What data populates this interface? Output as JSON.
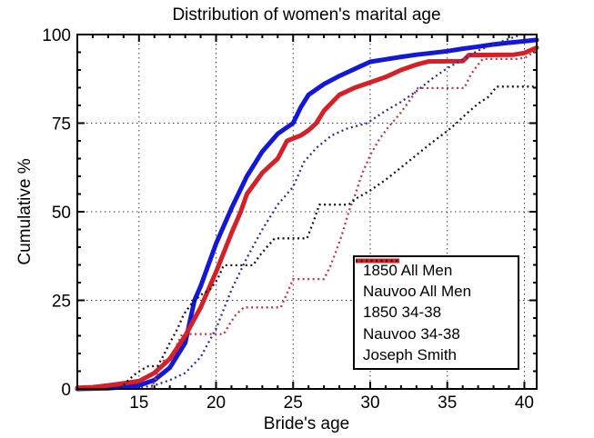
{
  "figure": {
    "background": "#ffffff"
  },
  "chart_data": {
    "type": "line",
    "title": "Distribution of women's marital age",
    "xlabel": "Bride's age",
    "ylabel": "Cumulative %",
    "xlim": [
      11,
      40.8
    ],
    "ylim": [
      0,
      100
    ],
    "x_ticks": [
      15,
      20,
      25,
      30,
      35,
      40
    ],
    "y_ticks": [
      0,
      25,
      50,
      75,
      100
    ],
    "x_minor_step": 1,
    "y_minor_step": 5,
    "grid": true,
    "grid_style": "dotted",
    "grid_color": "#3a3a3a",
    "axis_color": "#000000",
    "legend_position": "lower-right-inside",
    "series": [
      {
        "name": "1850 All Men",
        "color": "#1318d8",
        "line_style": "solid",
        "line_width": 5,
        "points": [
          [
            11,
            0
          ],
          [
            13,
            0.2
          ],
          [
            14,
            0.5
          ],
          [
            15,
            1
          ],
          [
            16,
            2.5
          ],
          [
            17,
            6
          ],
          [
            18,
            13
          ],
          [
            18.6,
            25
          ],
          [
            19,
            29
          ],
          [
            20,
            41
          ],
          [
            21,
            51
          ],
          [
            22,
            60
          ],
          [
            23,
            67
          ],
          [
            24,
            72
          ],
          [
            25,
            75
          ],
          [
            25.5,
            79.5
          ],
          [
            26,
            83
          ],
          [
            27,
            86
          ],
          [
            28,
            88.3
          ],
          [
            29,
            90.3
          ],
          [
            30,
            92.3
          ],
          [
            31,
            93
          ],
          [
            32,
            93.7
          ],
          [
            33,
            94.3
          ],
          [
            34,
            94.8
          ],
          [
            35,
            95.3
          ],
          [
            36,
            96
          ],
          [
            37,
            96.6
          ],
          [
            38,
            97.2
          ],
          [
            39,
            97.7
          ],
          [
            40,
            98.1
          ],
          [
            40.8,
            98.5
          ]
        ]
      },
      {
        "name": "Nauvoo All Men",
        "color": "#d42026",
        "line_style": "solid",
        "line_width": 5,
        "points": [
          [
            11,
            0.3
          ],
          [
            12,
            0.5
          ],
          [
            13,
            1
          ],
          [
            14,
            1.6
          ],
          [
            15,
            2.2
          ],
          [
            16,
            4.5
          ],
          [
            17,
            8.5
          ],
          [
            18,
            15
          ],
          [
            19,
            23
          ],
          [
            20,
            33
          ],
          [
            21,
            44
          ],
          [
            21.6,
            50
          ],
          [
            22,
            55
          ],
          [
            23,
            61
          ],
          [
            24,
            65
          ],
          [
            24.6,
            70
          ],
          [
            25.5,
            71.5
          ],
          [
            26,
            73
          ],
          [
            26.5,
            75
          ],
          [
            27,
            78.5
          ],
          [
            28,
            83
          ],
          [
            29,
            85
          ],
          [
            30,
            86.5
          ],
          [
            31,
            88
          ],
          [
            32,
            90
          ],
          [
            33,
            91.5
          ],
          [
            33.8,
            92.4
          ],
          [
            36,
            92.5
          ],
          [
            36.4,
            94.2
          ],
          [
            39.3,
            94.3
          ],
          [
            40,
            94.8
          ],
          [
            40.8,
            96.3
          ]
        ]
      },
      {
        "name": "1850 34-38",
        "color": "#2c2f9e",
        "line_style": "dotted",
        "line_width": 2.3,
        "points": [
          [
            14.5,
            0
          ],
          [
            15,
            0.3
          ],
          [
            16,
            1
          ],
          [
            17,
            2.5
          ],
          [
            18,
            4.5
          ],
          [
            19,
            9
          ],
          [
            20,
            17
          ],
          [
            21,
            28
          ],
          [
            22,
            37
          ],
          [
            23,
            45
          ],
          [
            24,
            52
          ],
          [
            25,
            57
          ],
          [
            25.7,
            64
          ],
          [
            26.5,
            68
          ],
          [
            27.5,
            71.5
          ],
          [
            28.5,
            73.5
          ],
          [
            29.8,
            75
          ],
          [
            31,
            78.5
          ],
          [
            32,
            81
          ],
          [
            33,
            84
          ],
          [
            34,
            87.5
          ],
          [
            35,
            90.5
          ],
          [
            36,
            93
          ],
          [
            37,
            95.5
          ],
          [
            38,
            97.2
          ],
          [
            39,
            98.8
          ],
          [
            39.8,
            100
          ],
          [
            40.6,
            100
          ]
        ]
      },
      {
        "name": "Nauvoo 34-38",
        "color": "#cc3040",
        "line_style": "dotted",
        "line_width": 2.3,
        "points": [
          [
            15.8,
            0
          ],
          [
            16.2,
            4
          ],
          [
            16.6,
            8
          ],
          [
            17.1,
            8
          ],
          [
            17.4,
            12
          ],
          [
            17.8,
            15.5
          ],
          [
            20.5,
            15.5
          ],
          [
            20.9,
            18.5
          ],
          [
            21.3,
            21
          ],
          [
            21.8,
            23
          ],
          [
            24.2,
            23
          ],
          [
            24.6,
            27
          ],
          [
            25,
            31
          ],
          [
            27,
            31
          ],
          [
            27.4,
            34.5
          ],
          [
            27.8,
            39
          ],
          [
            28.2,
            44
          ],
          [
            28.6,
            50
          ],
          [
            29,
            54.5
          ],
          [
            29.5,
            61
          ],
          [
            30,
            66
          ],
          [
            30.6,
            70.5
          ],
          [
            31.2,
            74
          ],
          [
            31.9,
            77.5
          ],
          [
            32.5,
            81
          ],
          [
            33.1,
            84.9
          ],
          [
            36.1,
            84.9
          ],
          [
            36.5,
            88.5
          ],
          [
            36.9,
            91
          ],
          [
            37.3,
            93.1
          ],
          [
            39.6,
            93.1
          ],
          [
            40.1,
            93.6
          ],
          [
            40.8,
            95.6
          ]
        ]
      },
      {
        "name": "Joseph Smith",
        "color": "#161616",
        "line_style": "dotted",
        "line_width": 2.3,
        "points": [
          [
            13.8,
            0
          ],
          [
            14.2,
            2
          ],
          [
            14.7,
            4
          ],
          [
            15.2,
            5.5
          ],
          [
            15.6,
            6.4
          ],
          [
            16.2,
            6.4
          ],
          [
            16.6,
            9.5
          ],
          [
            17,
            13
          ],
          [
            17.5,
            17
          ],
          [
            17.9,
            21
          ],
          [
            18.4,
            24
          ],
          [
            19,
            26.5
          ],
          [
            19.6,
            28
          ],
          [
            20.1,
            31
          ],
          [
            20.5,
            34.9
          ],
          [
            22.4,
            34.9
          ],
          [
            22.8,
            37.5
          ],
          [
            23.2,
            39.5
          ],
          [
            23.8,
            42.5
          ],
          [
            25.9,
            42.5
          ],
          [
            26.3,
            47
          ],
          [
            26.7,
            52
          ],
          [
            28.6,
            52
          ],
          [
            29.2,
            54
          ],
          [
            30,
            56
          ],
          [
            31,
            59
          ],
          [
            32,
            62.5
          ],
          [
            33,
            66
          ],
          [
            34,
            69.5
          ],
          [
            35,
            72.8
          ],
          [
            35.6,
            75
          ],
          [
            36.2,
            77.5
          ],
          [
            37,
            80.5
          ],
          [
            37.7,
            82.5
          ],
          [
            38.2,
            85.3
          ],
          [
            40.8,
            85.3
          ]
        ]
      }
    ]
  }
}
